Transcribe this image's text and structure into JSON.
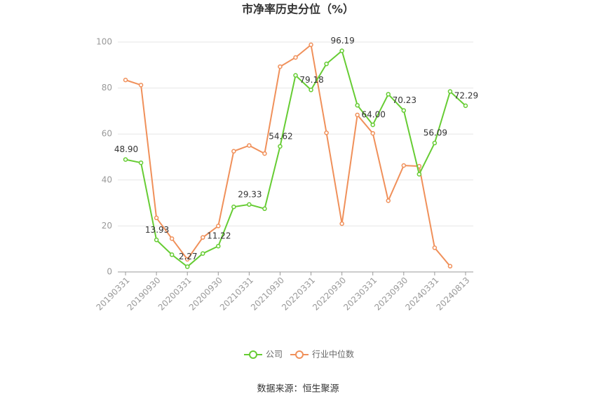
{
  "chart_data": {
    "type": "line",
    "title": "市净率历史分位（%）",
    "categories": [
      "20190331",
      null,
      "20190930",
      null,
      "20200331",
      null,
      "20200930",
      null,
      "20210331",
      null,
      "20210930",
      null,
      "20220331",
      null,
      "20220930",
      null,
      "20230331",
      null,
      "20230930",
      null,
      "20240331",
      null,
      "20240813"
    ],
    "series": [
      {
        "name": "公司",
        "color": "#66cc33",
        "values": [
          48.9,
          47.5,
          13.93,
          7.5,
          2.27,
          8,
          11.22,
          28.3,
          29.33,
          27.5,
          54.62,
          85.5,
          79.18,
          90.5,
          96.19,
          72.5,
          64.0,
          77.3,
          70.23,
          42.5,
          56.09,
          78.5,
          72.29
        ],
        "value_labels": [
          "48.90",
          null,
          "13.93",
          null,
          "2.27",
          null,
          "11.22",
          null,
          "29.33",
          null,
          "54.62",
          null,
          "79.18",
          null,
          "96.19",
          null,
          "64.00",
          null,
          "70.23",
          null,
          "56.09",
          null,
          "72.29"
        ]
      },
      {
        "name": "行业中位数",
        "color": "#f0905a",
        "values": [
          83.5,
          81.3,
          23.5,
          14.5,
          5.5,
          15,
          20,
          52.5,
          55,
          51.5,
          89.3,
          93.3,
          98.8,
          60.5,
          21,
          68.3,
          60.3,
          31,
          46.3,
          46,
          10.5,
          2.5,
          null
        ]
      }
    ],
    "ylim": [
      0,
      100
    ],
    "yticks": [
      0,
      20,
      40,
      60,
      80,
      100
    ],
    "grid": true,
    "source": "数据来源：恒生聚源"
  }
}
